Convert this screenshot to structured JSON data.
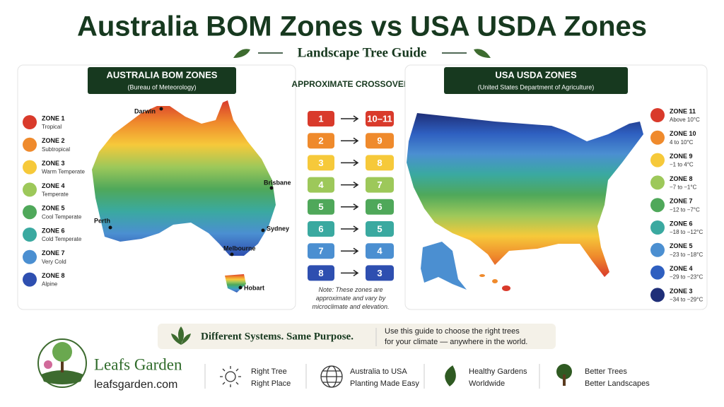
{
  "title": "Australia BOM Zones vs USA USDA Zones",
  "subtitle": "Landscape Tree Guide",
  "australia": {
    "heading": "AUSTRALIA BOM ZONES",
    "subheading": "(Bureau of Meteorology)",
    "zones": [
      {
        "name": "ZONE 1",
        "desc": "Tropical",
        "color": "#d93a2b"
      },
      {
        "name": "ZONE 2",
        "desc": "Subtropical",
        "color": "#ef8a2c"
      },
      {
        "name": "ZONE 3",
        "desc": "Warm Temperate",
        "color": "#f6c93a"
      },
      {
        "name": "ZONE 4",
        "desc": "Temperate",
        "color": "#9dc85a"
      },
      {
        "name": "ZONE 5",
        "desc": "Cool Temperate",
        "color": "#4fa85a"
      },
      {
        "name": "ZONE 6",
        "desc": "Cold Temperate",
        "color": "#3aa9a0"
      },
      {
        "name": "ZONE 7",
        "desc": "Very Cold",
        "color": "#4b8fd1"
      },
      {
        "name": "ZONE 8",
        "desc": "Alpine",
        "color": "#2e4fb0"
      }
    ],
    "cities": [
      "Darwin",
      "Brisbane",
      "Perth",
      "Sydney",
      "Melbourne",
      "Hobart"
    ]
  },
  "crossover": {
    "heading": "APPROXIMATE CROSSOVER",
    "rows": [
      {
        "au": "1",
        "us": "10–11"
      },
      {
        "au": "2",
        "us": "9"
      },
      {
        "au": "3",
        "us": "8"
      },
      {
        "au": "4",
        "us": "7"
      },
      {
        "au": "5",
        "us": "6"
      },
      {
        "au": "6",
        "us": "5"
      },
      {
        "au": "7",
        "us": "4"
      },
      {
        "au": "8",
        "us": "3"
      }
    ],
    "note": "Note: These zones are approximate and vary by microclimate and elevation."
  },
  "usa": {
    "heading": "USA USDA ZONES",
    "subheading": "(United States Department of Agriculture)",
    "zones": [
      {
        "name": "ZONE 11",
        "desc": "Above 10°C",
        "color": "#d93a2b"
      },
      {
        "name": "ZONE 10",
        "desc": "4 to 10°C",
        "color": "#ef8a2c"
      },
      {
        "name": "ZONE 9",
        "desc": "−1 to 4°C",
        "color": "#f6c93a"
      },
      {
        "name": "ZONE 8",
        "desc": "−7 to −1°C",
        "color": "#9dc85a"
      },
      {
        "name": "ZONE 7",
        "desc": "−12 to −7°C",
        "color": "#4fa85a"
      },
      {
        "name": "ZONE 6",
        "desc": "−18 to −12°C",
        "color": "#3aa9a0"
      },
      {
        "name": "ZONE 5",
        "desc": "−23 to −18°C",
        "color": "#4b8fd1"
      },
      {
        "name": "ZONE 4",
        "desc": "−29 to −23°C",
        "color": "#2e5fc0"
      },
      {
        "name": "ZONE 3",
        "desc": "−34 to −29°C",
        "color": "#1f2f78"
      }
    ]
  },
  "banner": {
    "tagline": "Different Systems. Same Purpose.",
    "text": [
      "Use this guide to choose the right trees",
      "for your climate — anywhere in the world."
    ]
  },
  "footer": {
    "brand": "Leafs Garden",
    "url": "leafsgarden.com",
    "features": [
      [
        "Right Tree",
        "Right Place"
      ],
      [
        "Australia to USA",
        "Planting Made Easy"
      ],
      [
        "Healthy Gardens",
        "Worldwide"
      ],
      [
        "Better Trees",
        "Better Landscapes"
      ]
    ]
  }
}
